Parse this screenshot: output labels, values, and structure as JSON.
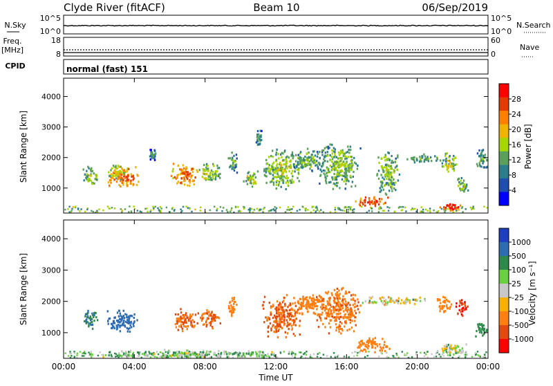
{
  "header": {
    "station": "Clyde River (fitACF)",
    "beam": "Beam 10",
    "date": "06/Sep/2019"
  },
  "status_panels": {
    "nsky_label": "N.Sky",
    "nsky_top": "10^5",
    "nsky_bottom": "10^0",
    "nsearch_label": "N.Search",
    "nsearch_top": "10^5",
    "nsearch_bottom": "10^0",
    "freq_label": "Freq.",
    "freq_unit": "[MHz]",
    "freq_ticks": [
      "18",
      "8"
    ],
    "nave_label": "Nave",
    "nave_ticks": [
      "60",
      "0"
    ],
    "cpid_label": "CPID",
    "cpid_value": "normal (fast) 151"
  },
  "chart_data": [
    {
      "type": "heatmap",
      "name": "power",
      "ylabel": "Slant Range [km]",
      "xlabel": "",
      "x_ticks": [
        "00:00",
        "04:00",
        "08:00",
        "12:00",
        "16:00",
        "20:00",
        "00:00"
      ],
      "y_ticks": [
        "1000",
        "2000",
        "3000",
        "4000"
      ],
      "colorbar": {
        "label": "Power [dB]",
        "ticks": [
          "28",
          "24",
          "20",
          "16",
          "12",
          "8",
          "4"
        ],
        "colors": [
          "#ff0000",
          "#e23b00",
          "#ff7f00",
          "#f0b400",
          "#a6d600",
          "#5aa05a",
          "#2d7d8a",
          "#1e4fae",
          "#0000ff"
        ]
      },
      "blobs": [
        {
          "t": 1.5,
          "r": 1400,
          "dt": 0.45,
          "dr": 350,
          "v": 12
        },
        {
          "t": 3.3,
          "r": 1350,
          "dt": 1.0,
          "dr": 400,
          "v": 22
        },
        {
          "t": 3.0,
          "r": 1500,
          "dt": 0.6,
          "dr": 250,
          "v": 16
        },
        {
          "t": 6.8,
          "r": 1400,
          "dt": 0.8,
          "dr": 400,
          "v": 22
        },
        {
          "t": 8.2,
          "r": 1450,
          "dt": 0.7,
          "dr": 350,
          "v": 14
        },
        {
          "t": 9.5,
          "r": 1800,
          "dt": 0.3,
          "dr": 400,
          "v": 10
        },
        {
          "t": 10.6,
          "r": 1300,
          "dt": 0.5,
          "dr": 300,
          "v": 14
        },
        {
          "t": 12.3,
          "r": 1600,
          "dt": 1.2,
          "dr": 700,
          "v": 13
        },
        {
          "t": 13.8,
          "r": 1900,
          "dt": 1.0,
          "dr": 400,
          "v": 11
        },
        {
          "t": 15.5,
          "r": 1700,
          "dt": 1.3,
          "dr": 800,
          "v": 12
        },
        {
          "t": 17.4,
          "r": 550,
          "dt": 1.0,
          "dr": 180,
          "v": 24
        },
        {
          "t": 18.3,
          "r": 1500,
          "dt": 0.7,
          "dr": 800,
          "v": 12
        },
        {
          "t": 20.5,
          "r": 1950,
          "dt": 1.2,
          "dr": 150,
          "v": 10
        },
        {
          "t": 21.8,
          "r": 1800,
          "dt": 0.5,
          "dr": 350,
          "v": 14
        },
        {
          "t": 22.5,
          "r": 1050,
          "dt": 0.4,
          "dr": 300,
          "v": 12
        },
        {
          "t": 21.8,
          "r": 350,
          "dt": 0.6,
          "dr": 150,
          "v": 26
        },
        {
          "t": 23.6,
          "r": 1900,
          "dt": 0.4,
          "dr": 400,
          "v": 10
        },
        {
          "t": 5.0,
          "r": 2100,
          "dt": 0.2,
          "dr": 200,
          "v": 8
        },
        {
          "t": 11.0,
          "r": 2600,
          "dt": 0.2,
          "dr": 300,
          "v": 9
        }
      ]
    },
    {
      "type": "heatmap",
      "name": "velocity",
      "ylabel": "Slant Range [km]",
      "xlabel": "Time UT",
      "x_ticks": [
        "00:00",
        "04:00",
        "08:00",
        "12:00",
        "16:00",
        "20:00",
        "00:00"
      ],
      "y_ticks": [
        "1000",
        "2000",
        "3000",
        "4000"
      ],
      "colorbar": {
        "label": "Velocity [m s⁻¹]",
        "ticks": [
          "1000",
          "500",
          "100",
          "25",
          "-25",
          "-100",
          "-500",
          "-1000"
        ],
        "colors": [
          "#1e3fbf",
          "#2f6db3",
          "#2d8a4a",
          "#6ad040",
          "#c8c8c8",
          "#f5b000",
          "#ff7f10",
          "#e24a10",
          "#ff0000"
        ]
      },
      "blobs": [
        {
          "t": 1.5,
          "r": 1400,
          "dt": 0.45,
          "dr": 350,
          "v": 300
        },
        {
          "t": 3.3,
          "r": 1350,
          "dt": 1.0,
          "dr": 400,
          "v": 600
        },
        {
          "t": 6.8,
          "r": 1400,
          "dt": 0.8,
          "dr": 400,
          "v": -300
        },
        {
          "t": 8.2,
          "r": 1450,
          "dt": 0.7,
          "dr": 350,
          "v": -300
        },
        {
          "t": 9.5,
          "r": 1800,
          "dt": 0.3,
          "dr": 400,
          "v": -200
        },
        {
          "t": 12.3,
          "r": 1500,
          "dt": 1.2,
          "dr": 700,
          "v": -300
        },
        {
          "t": 13.8,
          "r": 1900,
          "dt": 1.0,
          "dr": 400,
          "v": -150
        },
        {
          "t": 15.5,
          "r": 1700,
          "dt": 1.3,
          "dr": 800,
          "v": -250
        },
        {
          "t": 17.4,
          "r": 600,
          "dt": 1.1,
          "dr": 250,
          "v": -200
        },
        {
          "t": 18.5,
          "r": 2000,
          "dt": 2.0,
          "dr": 150,
          "v": 0
        },
        {
          "t": 21.5,
          "r": 1900,
          "dt": 0.5,
          "dr": 300,
          "v": -200
        },
        {
          "t": 22.5,
          "r": 1800,
          "dt": 0.4,
          "dr": 300,
          "v": -800
        },
        {
          "t": 23.6,
          "r": 1100,
          "dt": 0.4,
          "dr": 300,
          "v": 200
        },
        {
          "t": 22.0,
          "r": 450,
          "dt": 1.0,
          "dr": 200,
          "v": 10
        },
        {
          "t": 7.0,
          "r": 300,
          "dt": 6.0,
          "dr": 150,
          "v": 40
        }
      ]
    }
  ]
}
